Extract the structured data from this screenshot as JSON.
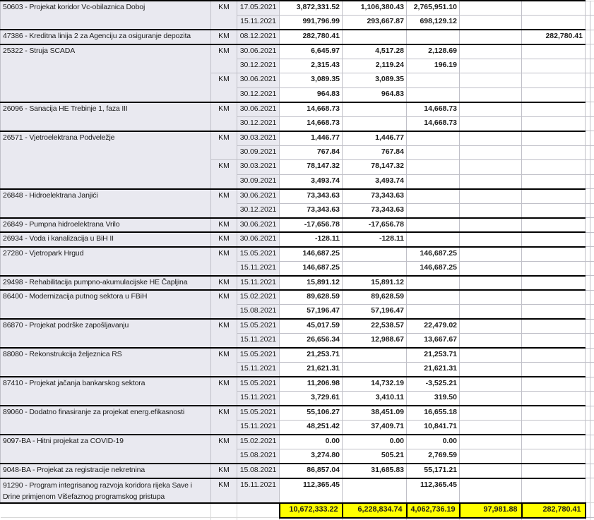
{
  "app": {
    "kind": "spreadsheet-fragment",
    "currency_label": "KM"
  },
  "colors": {
    "highlight_yellow": "#ffff00",
    "label_fill": "#e9e9f0",
    "grid_line": "#c0c0c8",
    "group_border": "#000000"
  },
  "table": {
    "groups": [
      {
        "name": "50603 - Projekat koridor Vc-obilaznica Doboj",
        "km_spans": [
          2
        ],
        "rows": [
          {
            "date": "17.05.2021",
            "v": [
              "3,872,331.52",
              "1,106,380.43",
              "2,765,951.10",
              "",
              ""
            ]
          },
          {
            "date": "15.11.2021",
            "v": [
              "991,796.99",
              "293,667.87",
              "698,129.12",
              "",
              ""
            ]
          }
        ]
      },
      {
        "name": "47386 - Kreditna linija 2 za Agenciju za osiguranje depozita",
        "km_spans": [
          1
        ],
        "rows": [
          {
            "date": "08.12.2021",
            "v": [
              "282,780.41",
              "",
              "",
              "",
              "282,780.41"
            ]
          }
        ]
      },
      {
        "name": "25322 - Struja SCADA",
        "km_spans": [
          2,
          2
        ],
        "rows": [
          {
            "date": "30.06.2021",
            "v": [
              "6,645.97",
              "4,517.28",
              "2,128.69",
              "",
              ""
            ]
          },
          {
            "date": "30.12.2021",
            "v": [
              "2,315.43",
              "2,119.24",
              "196.19",
              "",
              ""
            ]
          },
          {
            "date": "30.06.2021",
            "v": [
              "3,089.35",
              "3,089.35",
              "",
              "",
              ""
            ]
          },
          {
            "date": "30.12.2021",
            "v": [
              "964.83",
              "964.83",
              "",
              "",
              ""
            ]
          }
        ]
      },
      {
        "name": "26096 - Sanacija HE Trebinje 1, faza III",
        "km_spans": [
          2
        ],
        "rows": [
          {
            "date": "30.06.2021",
            "v": [
              "14,668.73",
              "",
              "14,668.73",
              "",
              ""
            ]
          },
          {
            "date": "30.12.2021",
            "v": [
              "14,668.73",
              "",
              "14,668.73",
              "",
              ""
            ]
          }
        ]
      },
      {
        "name": "26571 - Vjetroelektrana Podveležje",
        "km_spans": [
          2,
          2
        ],
        "rows": [
          {
            "date": "30.03.2021",
            "v": [
              "1,446.77",
              "1,446.77",
              "",
              "",
              ""
            ]
          },
          {
            "date": "30.09.2021",
            "v": [
              "767.84",
              "767.84",
              "",
              "",
              ""
            ]
          },
          {
            "date": "30.03.2021",
            "v": [
              "78,147.32",
              "78,147.32",
              "",
              "",
              ""
            ]
          },
          {
            "date": "30.09.2021",
            "v": [
              "3,493.74",
              "3,493.74",
              "",
              "",
              ""
            ]
          }
        ]
      },
      {
        "name": "26848 - Hidroelektrana Janjići",
        "km_spans": [
          2
        ],
        "rows": [
          {
            "date": "30.06.2021",
            "v": [
              "73,343.63",
              "73,343.63",
              "",
              "",
              ""
            ]
          },
          {
            "date": "30.12.2021",
            "v": [
              "73,343.63",
              "73,343.63",
              "",
              "",
              ""
            ]
          }
        ]
      },
      {
        "name": "26849 - Pumpna hidroelektrana Vrilo",
        "km_spans": [
          1
        ],
        "rows": [
          {
            "date": "30.06.2021",
            "v": [
              "-17,656.78",
              "-17,656.78",
              "",
              "",
              ""
            ]
          }
        ]
      },
      {
        "name": "26934 - Voda i kanalizacija u BiH II",
        "km_spans": [
          1
        ],
        "rows": [
          {
            "date": "30.06.2021",
            "v": [
              "-128.11",
              "-128.11",
              "",
              "",
              ""
            ]
          }
        ]
      },
      {
        "name": "27280 - Vjetropark Hrgud",
        "km_spans": [
          2
        ],
        "rows": [
          {
            "date": "15.05.2021",
            "v": [
              "146,687.25",
              "",
              "146,687.25",
              "",
              ""
            ]
          },
          {
            "date": "15.11.2021",
            "v": [
              "146,687.25",
              "",
              "146,687.25",
              "",
              ""
            ]
          }
        ]
      },
      {
        "name": "29498 - Rehabilitacija pumpno-akumulacijske HE Čapljina",
        "km_spans": [
          1
        ],
        "rows": [
          {
            "date": "15.11.2021",
            "v": [
              "15,891.12",
              "15,891.12",
              "",
              "",
              ""
            ]
          }
        ]
      },
      {
        "name": "86400 - Modernizacija putnog sektora u FBiH",
        "km_spans": [
          2
        ],
        "rows": [
          {
            "date": "15.02.2021",
            "v": [
              "89,628.59",
              "89,628.59",
              "",
              "",
              ""
            ]
          },
          {
            "date": "15.08.2021",
            "v": [
              "57,196.47",
              "57,196.47",
              "",
              "",
              ""
            ]
          }
        ]
      },
      {
        "name": "86870 - Projekat podrške zapošljavanju",
        "km_spans": [
          2
        ],
        "rows": [
          {
            "date": "15.05.2021",
            "v": [
              "45,017.59",
              "22,538.57",
              "22,479.02",
              "",
              ""
            ]
          },
          {
            "date": "15.11.2021",
            "v": [
              "26,656.34",
              "12,988.67",
              "13,667.67",
              "",
              ""
            ]
          }
        ]
      },
      {
        "name": "88080 - Rekonstrukcija željeznica RS",
        "km_spans": [
          2
        ],
        "rows": [
          {
            "date": "15.05.2021",
            "v": [
              "21,253.71",
              "",
              "21,253.71",
              "",
              ""
            ]
          },
          {
            "date": "15.11.2021",
            "v": [
              "21,621.31",
              "",
              "21,621.31",
              "",
              ""
            ]
          }
        ]
      },
      {
        "name": "87410 - Projekat jačanja bankarskog sektora",
        "km_spans": [
          2
        ],
        "rows": [
          {
            "date": "15.05.2021",
            "v": [
              "11,206.98",
              "14,732.19",
              "-3,525.21",
              "",
              ""
            ]
          },
          {
            "date": "15.11.2021",
            "v": [
              "3,729.61",
              "3,410.11",
              "319.50",
              "",
              ""
            ]
          }
        ]
      },
      {
        "name": "89060 - Dodatno finasiranje za projekat energ.efikasnosti",
        "km_spans": [
          2
        ],
        "rows": [
          {
            "date": "15.05.2021",
            "v": [
              "55,106.27",
              "38,451.09",
              "16,655.18",
              "",
              ""
            ]
          },
          {
            "date": "15.11.2021",
            "v": [
              "48,251.42",
              "37,409.71",
              "10,841.71",
              "",
              ""
            ]
          }
        ]
      },
      {
        "name": "9097-BA - Hitni projekat za COVID-19",
        "km_spans": [
          2
        ],
        "rows": [
          {
            "date": "15.02.2021",
            "v": [
              "0.00",
              "0.00",
              "0.00",
              "",
              ""
            ]
          },
          {
            "date": "15.08.2021",
            "v": [
              "3,274.80",
              "505.21",
              "2,769.59",
              "",
              ""
            ]
          }
        ]
      },
      {
        "name": "9048-BA - Projekat za registracije nekretnina",
        "km_spans": [
          1
        ],
        "rows": [
          {
            "date": "15.08.2021",
            "v": [
              "86,857.04",
              "31,685.83",
              "55,171.21",
              "",
              ""
            ]
          }
        ]
      },
      {
        "name": "91290 - Program integrisanog razvoja koridora rijeka Save i Drine primjenom Višefaznog programskog pristupa",
        "km_spans": [
          1
        ],
        "tall": true,
        "rows": [
          {
            "date": "15.11.2021",
            "v": [
              "112,365.45",
              "",
              "112,365.45",
              "",
              ""
            ]
          }
        ]
      }
    ],
    "totals": [
      "10,672,333.22",
      "6,228,834.74",
      "4,062,736.19",
      "97,981.88",
      "282,780.41"
    ]
  }
}
